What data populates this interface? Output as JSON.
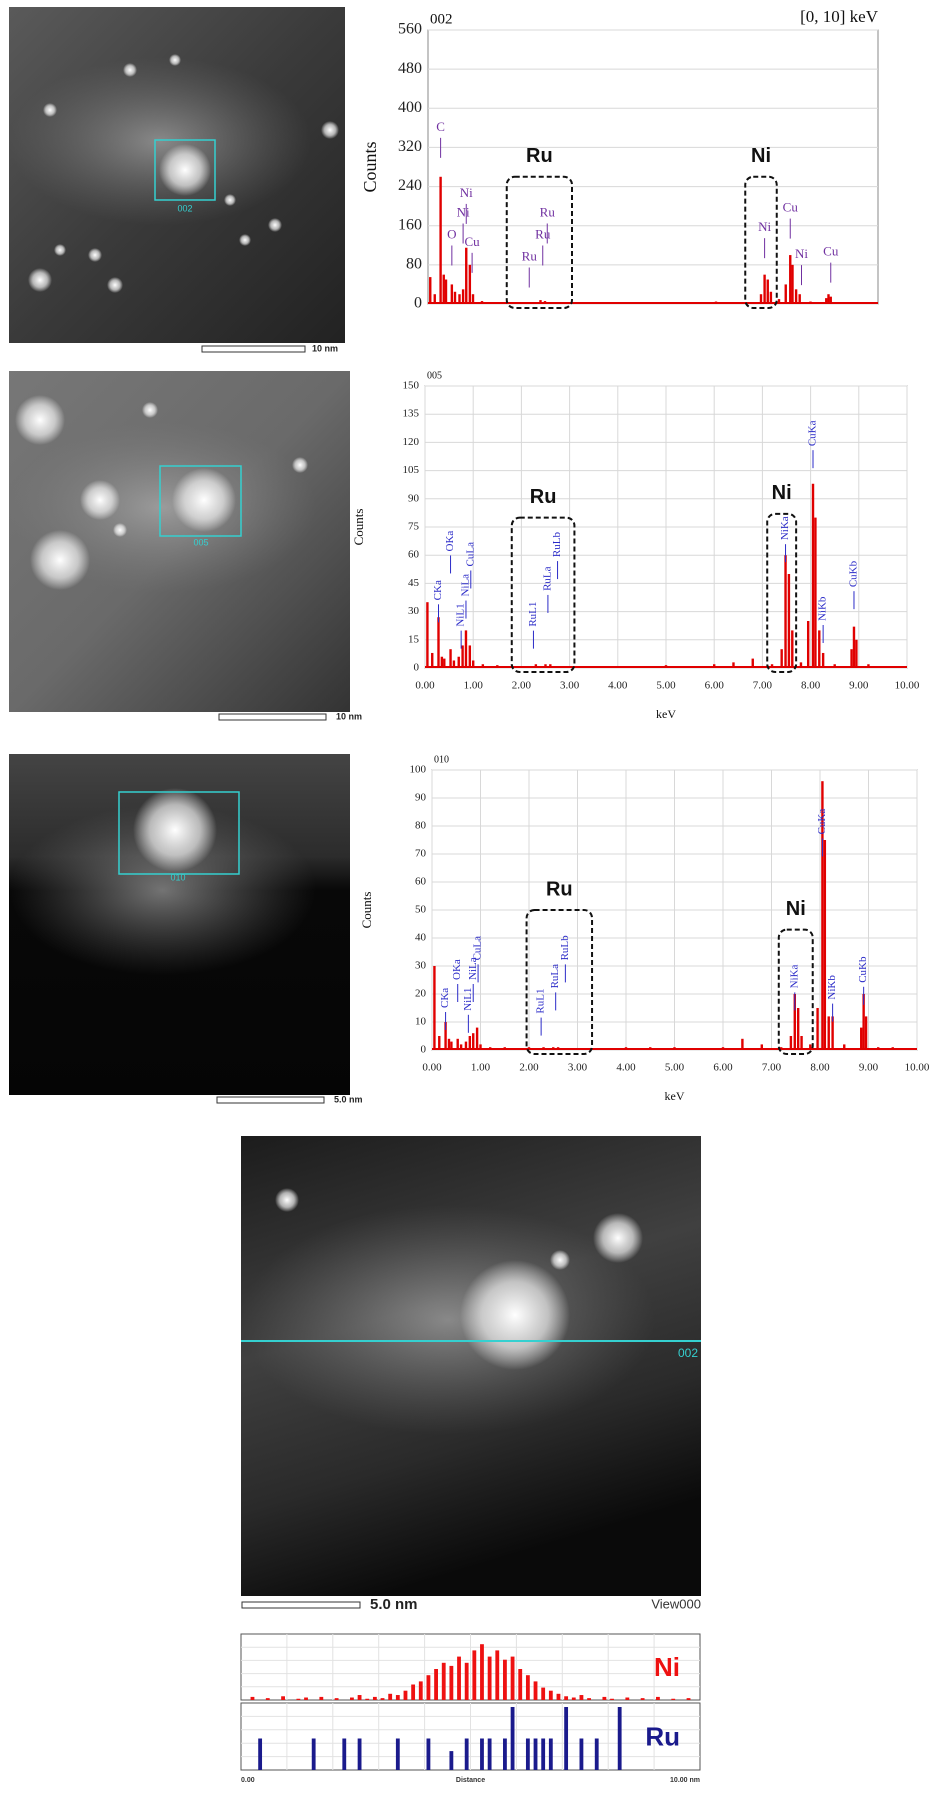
{
  "chart_data": [
    {
      "type": "spectrum",
      "title": "002",
      "subtitle": "[0, 10] keV",
      "y_label": "Counts",
      "color": "#e00000",
      "label_color": "#7030a0",
      "rotated_labels": false,
      "xlim": [
        0,
        10
      ],
      "ylim": [
        0,
        560
      ],
      "yticks": [
        0,
        80,
        160,
        240,
        320,
        400,
        480,
        560
      ],
      "grid": true,
      "x": [
        0.05,
        0.15,
        0.28,
        0.35,
        0.4,
        0.53,
        0.6,
        0.7,
        0.78,
        0.85,
        0.93,
        1.0,
        1.2,
        1.5,
        2.0,
        2.3,
        2.5,
        2.6,
        3.0,
        3.5,
        4.0,
        4.5,
        5.0,
        5.5,
        6.0,
        6.4,
        6.8,
        7.2,
        7.4,
        7.48,
        7.55,
        7.62,
        7.8,
        7.95,
        8.05,
        8.1,
        8.18,
        8.26,
        8.5,
        8.85,
        8.9,
        8.95,
        9.2,
        9.5,
        9.8
      ],
      "values": [
        55,
        20,
        260,
        60,
        50,
        40,
        25,
        20,
        30,
        115,
        80,
        20,
        6,
        4,
        3,
        3,
        8,
        6,
        3,
        2,
        3,
        2,
        3,
        2,
        3,
        5,
        3,
        3,
        20,
        60,
        50,
        25,
        10,
        40,
        100,
        80,
        30,
        20,
        5,
        12,
        20,
        15,
        4,
        3,
        2
      ],
      "annotations": [
        {
          "text": "C",
          "x": 0.28,
          "y": 360
        },
        {
          "text": "Ni",
          "x": 0.85,
          "y": 225
        },
        {
          "text": "Ni",
          "x": 0.78,
          "y": 185
        },
        {
          "text": "O",
          "x": 0.53,
          "y": 140
        },
        {
          "text": "Cu",
          "x": 0.98,
          "y": 125
        },
        {
          "text": "Ru",
          "x": 2.65,
          "y": 185
        },
        {
          "text": "Ru",
          "x": 2.55,
          "y": 140
        },
        {
          "text": "Ru",
          "x": 2.25,
          "y": 95
        },
        {
          "text": "Ni",
          "x": 7.48,
          "y": 155
        },
        {
          "text": "Cu",
          "x": 8.05,
          "y": 195
        },
        {
          "text": "Ni",
          "x": 8.3,
          "y": 100
        },
        {
          "text": "Cu",
          "x": 8.95,
          "y": 105
        }
      ],
      "highlights": [
        {
          "label": "Ru",
          "x": [
            1.75,
            3.2
          ],
          "y": [
            0,
            260
          ]
        },
        {
          "label": "Ni",
          "x": [
            7.05,
            7.75
          ],
          "y": [
            0,
            260
          ]
        }
      ]
    },
    {
      "type": "spectrum",
      "title": "005",
      "y_label": "Counts",
      "x_label": "keV",
      "color": "#e00000",
      "label_color": "#2b2bc8",
      "rotated_labels": true,
      "xlim": [
        0,
        10
      ],
      "ylim": [
        0,
        150
      ],
      "yticks": [
        0,
        15,
        30,
        45,
        60,
        75,
        90,
        105,
        120,
        135,
        150
      ],
      "grid": true,
      "xticks": [
        {
          "value": 0,
          "label": "0.00"
        },
        {
          "value": 1,
          "label": "1.00"
        },
        {
          "value": 2,
          "label": "2.00"
        },
        {
          "value": 3,
          "label": "3.00"
        },
        {
          "value": 4,
          "label": "4.00"
        },
        {
          "value": 5,
          "label": "5.00"
        },
        {
          "value": 6,
          "label": "6.00"
        },
        {
          "value": 7,
          "label": "7.00"
        },
        {
          "value": 8,
          "label": "8.00"
        },
        {
          "value": 9,
          "label": "9.00"
        },
        {
          "value": 10,
          "label": "10.00"
        }
      ],
      "x": [
        0.05,
        0.15,
        0.28,
        0.35,
        0.4,
        0.53,
        0.6,
        0.7,
        0.78,
        0.85,
        0.93,
        1.0,
        1.2,
        1.5,
        2.0,
        2.3,
        2.5,
        2.6,
        3.0,
        3.5,
        4.0,
        4.5,
        5.0,
        5.5,
        6.0,
        6.4,
        6.8,
        7.2,
        7.4,
        7.48,
        7.55,
        7.62,
        7.8,
        7.95,
        8.05,
        8.1,
        8.18,
        8.26,
        8.5,
        8.85,
        8.9,
        8.95,
        9.2,
        9.5,
        9.8
      ],
      "values": [
        35,
        8,
        27,
        6,
        5,
        10,
        4,
        6,
        12,
        20,
        12,
        4,
        2,
        1.5,
        1,
        2,
        2,
        2,
        1,
        1,
        1,
        1,
        1.5,
        1,
        2,
        3,
        5,
        2,
        10,
        60,
        50,
        20,
        3,
        25,
        98,
        80,
        20,
        8,
        2,
        10,
        22,
        15,
        2,
        1,
        1
      ],
      "annotations": [
        {
          "text": "CKa",
          "x": 0.28,
          "y": 36
        },
        {
          "text": "OKa",
          "x": 0.53,
          "y": 62
        },
        {
          "text": "NiL1",
          "x": 0.75,
          "y": 22
        },
        {
          "text": "NiLa",
          "x": 0.85,
          "y": 38
        },
        {
          "text": "CuLa",
          "x": 0.95,
          "y": 54
        },
        {
          "text": "RuL1",
          "x": 2.25,
          "y": 22
        },
        {
          "text": "RuLa",
          "x": 2.55,
          "y": 41
        },
        {
          "text": "RuLb",
          "x": 2.75,
          "y": 59
        },
        {
          "text": "NiKa",
          "x": 7.48,
          "y": 68
        },
        {
          "text": "CuKa",
          "x": 8.05,
          "y": 118
        },
        {
          "text": "NiKb",
          "x": 8.26,
          "y": 25
        },
        {
          "text": "CuKb",
          "x": 8.9,
          "y": 43
        }
      ],
      "highlights": [
        {
          "label": "Ru",
          "x": [
            1.8,
            3.1
          ],
          "y": [
            0,
            80
          ]
        },
        {
          "label": "Ni",
          "x": [
            7.1,
            7.7
          ],
          "y": [
            0,
            82
          ]
        }
      ]
    },
    {
      "type": "spectrum",
      "title": "010",
      "y_label": "Counts",
      "x_label": "keV",
      "color": "#e00000",
      "label_color": "#2b2bc8",
      "rotated_labels": true,
      "xlim": [
        0,
        10
      ],
      "ylim": [
        0,
        100
      ],
      "yticks": [
        0,
        10,
        20,
        30,
        40,
        50,
        60,
        70,
        80,
        90,
        100
      ],
      "grid": true,
      "xticks": [
        {
          "value": 0,
          "label": "0.00"
        },
        {
          "value": 1,
          "label": "1.00"
        },
        {
          "value": 2,
          "label": "2.00"
        },
        {
          "value": 3,
          "label": "3.00"
        },
        {
          "value": 4,
          "label": "4.00"
        },
        {
          "value": 5,
          "label": "5.00"
        },
        {
          "value": 6,
          "label": "6.00"
        },
        {
          "value": 7,
          "label": "7.00"
        },
        {
          "value": 8,
          "label": "8.00"
        },
        {
          "value": 9,
          "label": "9.00"
        },
        {
          "value": 10,
          "label": "10.00"
        }
      ],
      "x": [
        0.05,
        0.15,
        0.28,
        0.35,
        0.4,
        0.53,
        0.6,
        0.7,
        0.78,
        0.85,
        0.93,
        1.0,
        1.2,
        1.5,
        2.0,
        2.3,
        2.5,
        2.6,
        3.0,
        3.5,
        4.0,
        4.5,
        5.0,
        5.5,
        6.0,
        6.4,
        6.8,
        7.2,
        7.4,
        7.48,
        7.55,
        7.62,
        7.8,
        7.95,
        8.05,
        8.1,
        8.18,
        8.26,
        8.5,
        8.85,
        8.9,
        8.95,
        9.2,
        9.5,
        9.8
      ],
      "values": [
        30,
        5,
        10,
        4,
        3,
        4,
        2,
        3,
        5,
        6,
        8,
        2,
        1,
        1,
        1,
        1,
        1,
        1,
        0.5,
        0.5,
        1,
        1,
        1,
        0.5,
        1,
        4,
        2,
        1,
        5,
        20,
        15,
        5,
        2,
        15,
        96,
        75,
        12,
        12,
        2,
        8,
        20,
        12,
        1,
        1,
        0.5
      ],
      "annotations": [
        {
          "text": "CKa",
          "x": 0.28,
          "y": 15
        },
        {
          "text": "OKa",
          "x": 0.53,
          "y": 25
        },
        {
          "text": "NiL1",
          "x": 0.75,
          "y": 14
        },
        {
          "text": "NiLa",
          "x": 0.85,
          "y": 25
        },
        {
          "text": "CuLa",
          "x": 0.95,
          "y": 32
        },
        {
          "text": "RuL1",
          "x": 2.25,
          "y": 13
        },
        {
          "text": "RuLa",
          "x": 2.55,
          "y": 22
        },
        {
          "text": "RuLb",
          "x": 2.75,
          "y": 32
        },
        {
          "text": "NiKa",
          "x": 7.48,
          "y": 22
        },
        {
          "text": "CuKa",
          "x": 8.05,
          "y": 77
        },
        {
          "text": "NiKb",
          "x": 8.26,
          "y": 18
        },
        {
          "text": "CuKb",
          "x": 8.9,
          "y": 24
        }
      ],
      "highlights": [
        {
          "label": "Ru",
          "x": [
            1.95,
            3.3
          ],
          "y": [
            0,
            50
          ]
        },
        {
          "label": "Ni",
          "x": [
            7.15,
            7.85
          ],
          "y": [
            0,
            43
          ]
        }
      ]
    },
    {
      "type": "profile",
      "xlim": [
        0,
        10
      ],
      "ylim": [
        0,
        10
      ],
      "series": [
        {
          "name": "Ni",
          "color": "#ee1111",
          "values": [
            0,
            0.5,
            0,
            0.3,
            0,
            0.6,
            0,
            0.2,
            0.4,
            0,
            0.5,
            0,
            0.3,
            0,
            0.4,
            0.8,
            0.2,
            0.5,
            0.3,
            1,
            0.8,
            1.5,
            2.5,
            3,
            4,
            5,
            6,
            5.5,
            7,
            6,
            8,
            9,
            7,
            8,
            6.5,
            7,
            5,
            4,
            3,
            2,
            1.5,
            1,
            0.6,
            0.4,
            0.8,
            0.3,
            0,
            0.5,
            0.2,
            0,
            0.4,
            0,
            0.3,
            0,
            0.5,
            0,
            0.2,
            0,
            0.3,
            0
          ]
        }
      ]
    },
    {
      "type": "profile",
      "xlim": [
        0,
        10
      ],
      "ylim": [
        0,
        1
      ],
      "x_label": "Distance",
      "xticks": [
        {
          "value": 0,
          "label": "0.00"
        },
        {
          "value": 10,
          "label": "10.00 nm"
        }
      ],
      "series": [
        {
          "name": "Ru",
          "color": "#1a1a8c",
          "values": [
            0,
            0,
            0.5,
            0,
            0,
            0,
            0,
            0,
            0,
            0.5,
            0,
            0,
            0,
            0.5,
            0,
            0.5,
            0,
            0,
            0,
            0,
            0.5,
            0,
            0,
            0,
            0.5,
            0,
            0,
            0.3,
            0,
            0.5,
            0,
            0.5,
            0.5,
            0,
            0.5,
            1,
            0,
            0.5,
            0.5,
            0.5,
            0.5,
            0,
            1,
            0,
            0.5,
            0,
            0.5,
            0,
            0,
            1,
            0,
            0,
            0,
            0,
            0,
            0,
            0,
            0,
            0,
            0
          ]
        }
      ]
    }
  ],
  "images": [
    {
      "roi_label": "002",
      "scale_bar": "10 nm"
    },
    {
      "roi_label": "005",
      "scale_bar": "10 nm"
    },
    {
      "roi_label": "010",
      "scale_bar": "5.0 nm"
    },
    {
      "line_label": "002",
      "scale_bar": "5.0 nm",
      "view": "View000"
    }
  ]
}
